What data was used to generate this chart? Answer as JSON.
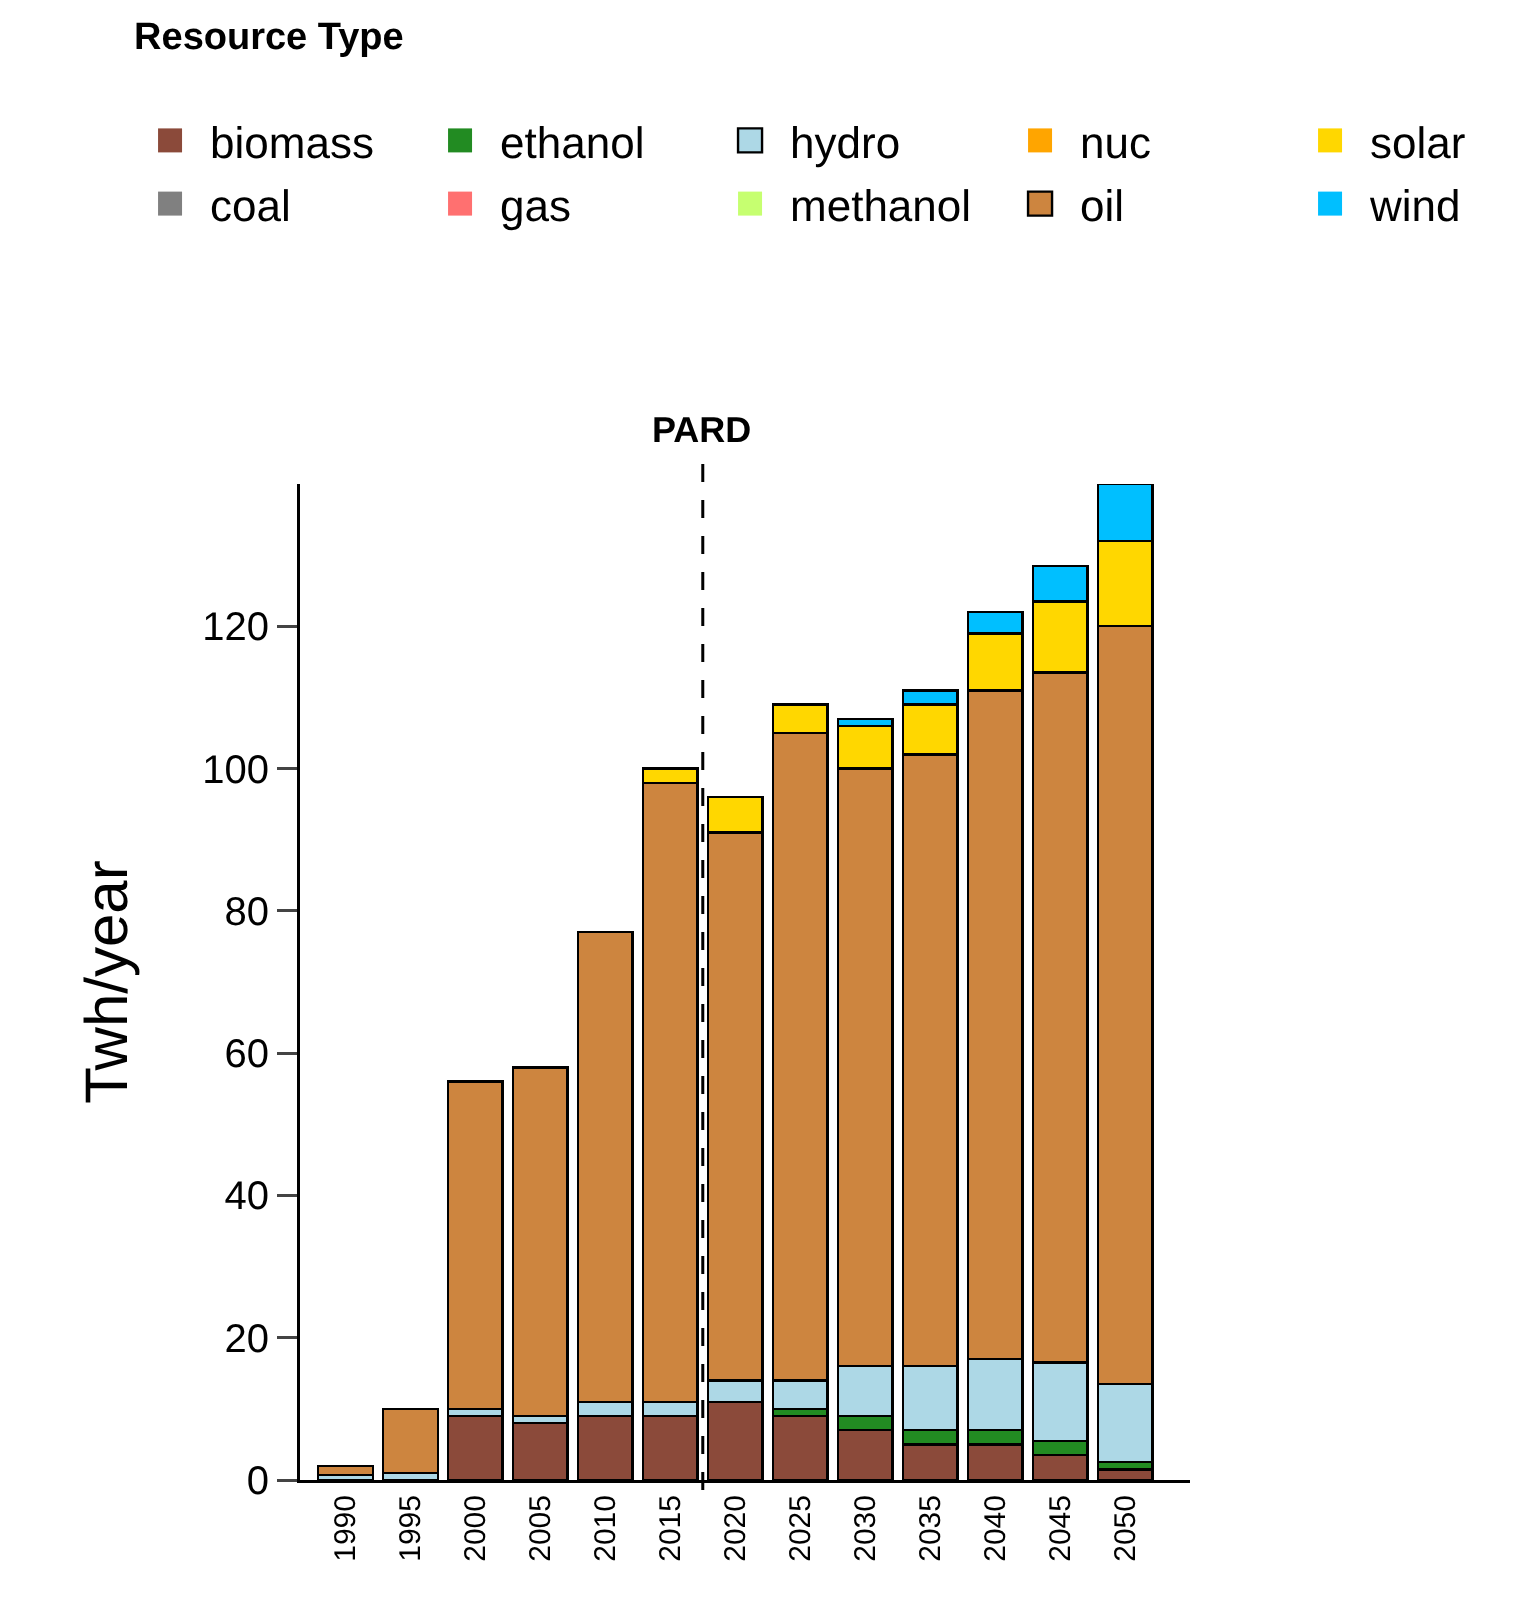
{
  "chart_data": {
    "type": "bar",
    "stacked": true,
    "ylabel": "Twh/year",
    "legend_title": "Resource Type",
    "legend": "top",
    "x": [
      1990,
      1995,
      2000,
      2005,
      2010,
      2015,
      2020,
      2025,
      2030,
      2035,
      2040,
      2045,
      2050
    ],
    "xlim": [
      1986.5,
      2055
    ],
    "xticks": [
      1990,
      1995,
      2000,
      2005,
      2010,
      2015,
      2020,
      2025,
      2030,
      2035,
      2040,
      2045,
      2050
    ],
    "ylim": [
      0,
      140
    ],
    "yticks": [
      0,
      20,
      40,
      60,
      80,
      100,
      120
    ],
    "grid": false,
    "series": [
      {
        "name": "biomass",
        "color": "#8b4a3a",
        "values": [
          0,
          0,
          9,
          8,
          9,
          9,
          11,
          9,
          7,
          5,
          5,
          3.5,
          1.5
        ]
      },
      {
        "name": "coal",
        "color": "#808080",
        "values": [
          0,
          0,
          0,
          0,
          0,
          0,
          0,
          0,
          0,
          0,
          0,
          0,
          0
        ]
      },
      {
        "name": "ethanol",
        "color": "#228b22",
        "values": [
          0,
          0,
          0,
          0,
          0,
          0,
          0,
          1,
          2,
          2,
          2,
          2,
          1
        ]
      },
      {
        "name": "gas",
        "color": "#ff7070",
        "values": [
          0,
          0,
          0,
          0,
          0,
          0,
          0,
          0,
          0,
          0,
          0,
          0,
          0
        ]
      },
      {
        "name": "hydro",
        "color": "#add8e6",
        "values": [
          0.7,
          1,
          1,
          1,
          2,
          2,
          3,
          4,
          7,
          9,
          10,
          11,
          11
        ]
      },
      {
        "name": "methanol",
        "color": "#c6ff70",
        "values": [
          0,
          0,
          0,
          0,
          0,
          0,
          0,
          0,
          0,
          0,
          0,
          0,
          0
        ]
      },
      {
        "name": "nuc",
        "color": "#ffa500",
        "values": [
          0,
          0,
          0,
          0,
          0,
          0,
          0,
          0,
          0,
          0,
          0,
          0,
          0
        ]
      },
      {
        "name": "oil",
        "color": "#cd853f",
        "values": [
          1.3,
          9,
          46,
          49,
          66,
          87,
          77,
          91,
          84,
          86,
          94,
          97,
          106.5
        ]
      },
      {
        "name": "solar",
        "color": "#ffd700",
        "values": [
          0,
          0,
          0,
          0,
          0,
          2,
          5,
          4,
          6,
          7,
          8,
          10,
          12
        ]
      },
      {
        "name": "wind",
        "color": "#00bfff",
        "values": [
          0,
          0,
          0,
          0,
          0,
          0,
          0,
          0,
          1,
          2,
          3,
          5,
          8
        ]
      }
    ],
    "ref_lines": [
      {
        "axis": "x",
        "value": 2017.5,
        "label": "PARD",
        "line_style": "dashed",
        "color": "#000000"
      }
    ]
  }
}
